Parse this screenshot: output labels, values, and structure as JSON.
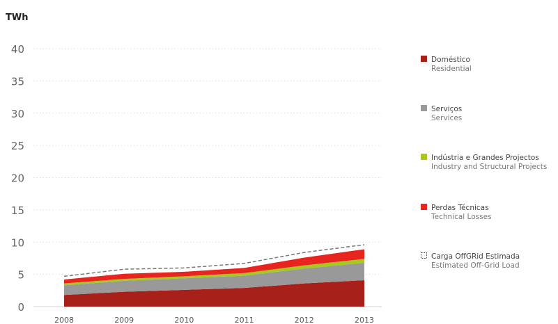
{
  "chart_data": {
    "type": "area",
    "stacked": true,
    "unit_label": "TWh",
    "x": [
      "2008",
      "2009",
      "2010",
      "2011",
      "2012",
      "2013"
    ],
    "ylim": [
      0,
      40
    ],
    "yticks": [
      0,
      5,
      10,
      15,
      20,
      25,
      30,
      35,
      40
    ],
    "grid": true,
    "legend_position": "right",
    "series": [
      {
        "name": "Doméstico",
        "name_en": "Residential",
        "color": "#a8201a",
        "values": [
          1.8,
          2.3,
          2.6,
          2.9,
          3.6,
          4.1
        ]
      },
      {
        "name": "Serviços",
        "name_en": "Services",
        "color": "#999999",
        "values": [
          1.5,
          1.7,
          1.8,
          1.9,
          2.3,
          2.7
        ]
      },
      {
        "name": "Indústria e Grandes Projectos",
        "name_en": "Industry and Structural Projects",
        "color": "#a8c81e",
        "values": [
          0.3,
          0.3,
          0.3,
          0.4,
          0.5,
          0.6
        ]
      },
      {
        "name": "Perdas Técnicas",
        "name_en": "Technical Losses",
        "color": "#e8241e",
        "values": [
          0.6,
          0.8,
          0.7,
          0.8,
          1.2,
          1.5
        ]
      },
      {
        "name": "Carga OffGRid Estimada",
        "name_en": "Estimated Off-Grid Load",
        "color": "#777777",
        "style": "dashed-line",
        "values": [
          0.5,
          0.7,
          0.6,
          0.7,
          0.8,
          0.7
        ]
      }
    ]
  }
}
